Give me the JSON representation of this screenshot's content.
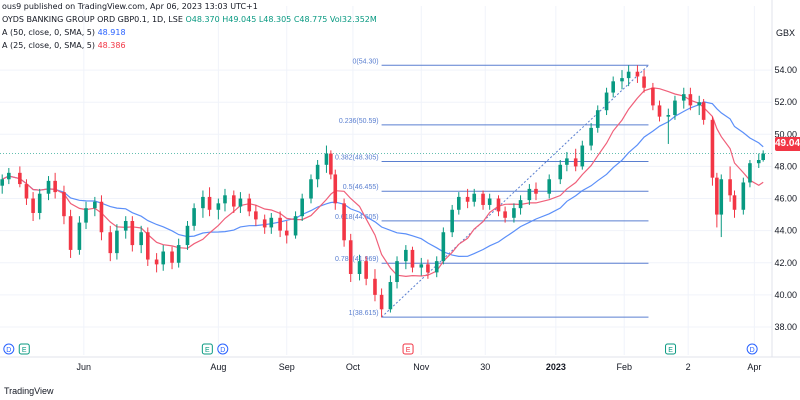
{
  "header": {
    "published": "ous9 published on TradingView.com, Apr 06, 2023 13:03 UTC+1",
    "symbol": "OYDS BANKING GROUP ORD GBP0.1, 1D, LSE",
    "ohlc": "O48.370 H49.045 L48.305 C48.775 Vol32.352M",
    "ma50_label": "A (50, close, 0, SMA, 5)",
    "ma50_value": "48.918",
    "ma25_label": "A (25, close, 0, SMA, 5)",
    "ma25_value": "48.386"
  },
  "footer": {
    "brand": "TradingView"
  },
  "colors": {
    "up": "#089981",
    "down": "#f23645",
    "ma50": "#5b8ff9",
    "ma25": "#f0607a",
    "fib": "#5a7fd0",
    "grid": "#f0f3fa",
    "axis_text": "#131722"
  },
  "chart_data": {
    "type": "line",
    "title": "",
    "ylabel": "GBX",
    "ylim": [
      37.5,
      55.5
    ],
    "y_ticks": [
      38,
      40,
      42,
      44,
      46,
      48,
      50,
      52,
      54
    ],
    "y_tick_labels": [
      "38.00",
      "40.00",
      "42.00",
      "44.00",
      "46.00",
      "48.00",
      "50.00",
      "52.00",
      "54.00"
    ],
    "x_ticks": [
      {
        "date": "2022-06-01",
        "label": "Jun"
      },
      {
        "date": "2022-08-01",
        "label": "Aug"
      },
      {
        "date": "2022-09-01",
        "label": "Sep"
      },
      {
        "date": "2022-10-01",
        "label": "Oct"
      },
      {
        "date": "2022-11-01",
        "label": "Nov"
      },
      {
        "date": "2022-11-30",
        "label": "30"
      },
      {
        "date": "2023-01-01",
        "label": "2023"
      },
      {
        "date": "2023-02-01",
        "label": "Feb"
      },
      {
        "date": "2023-03-02",
        "label": "2"
      },
      {
        "date": "2023-04-01",
        "label": "Apr"
      }
    ],
    "last_price": "49.04",
    "fibonacci": [
      {
        "label": "0(54.30)",
        "level": 54.3
      },
      {
        "label": "0.236(50.59)",
        "level": 50.59
      },
      {
        "label": "0.382(48.305)",
        "level": 48.305
      },
      {
        "label": "0.5(46.455)",
        "level": 46.455
      },
      {
        "label": "0.618(44.605)",
        "level": 44.605
      },
      {
        "label": "0.786(41.969)",
        "level": 41.969
      },
      {
        "label": "1(38.615)",
        "level": 38.615
      }
    ],
    "fib_range": {
      "start": "2022-10-14",
      "end": "2023-02-12"
    },
    "trend_line": {
      "from": {
        "date": "2022-10-14",
        "value": 38.615
      },
      "to": {
        "date": "2023-02-12",
        "value": 54.3
      }
    },
    "events": [
      {
        "date": "2022-04-28",
        "label": "D"
      },
      {
        "date": "2022-05-05",
        "label": "E"
      },
      {
        "date": "2022-07-27",
        "label": "E"
      },
      {
        "date": "2022-08-03",
        "label": "D"
      },
      {
        "date": "2022-10-26",
        "label": "E"
      },
      {
        "date": "2023-02-22",
        "label": "E"
      },
      {
        "date": "2023-03-31",
        "label": "D"
      }
    ],
    "candles": [
      {
        "date": "2022-04-25",
        "o": 46.8,
        "h": 47.5,
        "l": 46.3,
        "c": 47.2
      },
      {
        "date": "2022-04-28",
        "o": 47.2,
        "h": 47.9,
        "l": 46.9,
        "c": 47.6
      },
      {
        "date": "2022-05-03",
        "o": 47.6,
        "h": 48.0,
        "l": 46.7,
        "c": 46.9
      },
      {
        "date": "2022-05-06",
        "o": 46.9,
        "h": 47.2,
        "l": 45.6,
        "c": 46.0
      },
      {
        "date": "2022-05-09",
        "o": 46.0,
        "h": 46.4,
        "l": 44.6,
        "c": 45.1
      },
      {
        "date": "2022-05-12",
        "o": 45.1,
        "h": 46.6,
        "l": 44.7,
        "c": 46.3
      },
      {
        "date": "2022-05-16",
        "o": 46.3,
        "h": 47.4,
        "l": 45.9,
        "c": 47.1
      },
      {
        "date": "2022-05-19",
        "o": 47.1,
        "h": 47.6,
        "l": 46.0,
        "c": 46.4
      },
      {
        "date": "2022-05-23",
        "o": 46.4,
        "h": 46.8,
        "l": 44.4,
        "c": 44.9
      },
      {
        "date": "2022-05-26",
        "o": 44.9,
        "h": 45.3,
        "l": 42.3,
        "c": 42.8
      },
      {
        "date": "2022-05-30",
        "o": 42.8,
        "h": 44.9,
        "l": 42.5,
        "c": 44.5
      },
      {
        "date": "2022-06-02",
        "o": 44.5,
        "h": 45.8,
        "l": 44.1,
        "c": 45.4
      },
      {
        "date": "2022-06-06",
        "o": 45.4,
        "h": 46.1,
        "l": 44.9,
        "c": 45.8
      },
      {
        "date": "2022-06-09",
        "o": 45.8,
        "h": 46.2,
        "l": 43.4,
        "c": 43.9
      },
      {
        "date": "2022-06-13",
        "o": 43.9,
        "h": 44.3,
        "l": 42.1,
        "c": 42.6
      },
      {
        "date": "2022-06-16",
        "o": 42.6,
        "h": 44.4,
        "l": 42.2,
        "c": 44.0
      },
      {
        "date": "2022-06-20",
        "o": 44.0,
        "h": 44.9,
        "l": 43.5,
        "c": 44.6
      },
      {
        "date": "2022-06-23",
        "o": 44.6,
        "h": 44.9,
        "l": 42.7,
        "c": 43.1
      },
      {
        "date": "2022-06-27",
        "o": 43.1,
        "h": 44.3,
        "l": 42.6,
        "c": 43.9
      },
      {
        "date": "2022-06-30",
        "o": 43.9,
        "h": 44.2,
        "l": 41.8,
        "c": 42.2
      },
      {
        "date": "2022-07-04",
        "o": 42.2,
        "h": 42.6,
        "l": 41.4,
        "c": 41.9
      },
      {
        "date": "2022-07-07",
        "o": 41.9,
        "h": 43.1,
        "l": 41.5,
        "c": 42.7
      },
      {
        "date": "2022-07-11",
        "o": 42.7,
        "h": 43.0,
        "l": 41.6,
        "c": 42.0
      },
      {
        "date": "2022-07-14",
        "o": 42.0,
        "h": 43.5,
        "l": 41.7,
        "c": 43.1
      },
      {
        "date": "2022-07-18",
        "o": 43.1,
        "h": 44.6,
        "l": 42.8,
        "c": 44.3
      },
      {
        "date": "2022-07-21",
        "o": 44.3,
        "h": 45.7,
        "l": 44.0,
        "c": 45.4
      },
      {
        "date": "2022-07-25",
        "o": 45.4,
        "h": 46.5,
        "l": 44.8,
        "c": 46.1
      },
      {
        "date": "2022-07-28",
        "o": 46.1,
        "h": 46.7,
        "l": 44.9,
        "c": 45.3
      },
      {
        "date": "2022-08-01",
        "o": 45.3,
        "h": 46.0,
        "l": 44.7,
        "c": 45.7
      },
      {
        "date": "2022-08-04",
        "o": 45.7,
        "h": 46.6,
        "l": 45.2,
        "c": 46.2
      },
      {
        "date": "2022-08-08",
        "o": 46.2,
        "h": 46.5,
        "l": 45.1,
        "c": 45.5
      },
      {
        "date": "2022-08-11",
        "o": 45.5,
        "h": 46.4,
        "l": 45.1,
        "c": 46.0
      },
      {
        "date": "2022-08-15",
        "o": 46.0,
        "h": 46.3,
        "l": 44.9,
        "c": 45.2
      },
      {
        "date": "2022-08-18",
        "o": 45.2,
        "h": 45.6,
        "l": 44.3,
        "c": 44.7
      },
      {
        "date": "2022-08-22",
        "o": 44.7,
        "h": 45.0,
        "l": 43.8,
        "c": 44.2
      },
      {
        "date": "2022-08-25",
        "o": 44.2,
        "h": 45.1,
        "l": 43.8,
        "c": 44.8
      },
      {
        "date": "2022-08-29",
        "o": 44.8,
        "h": 45.2,
        "l": 43.6,
        "c": 44.0
      },
      {
        "date": "2022-09-01",
        "o": 44.0,
        "h": 44.6,
        "l": 43.2,
        "c": 43.7
      },
      {
        "date": "2022-09-05",
        "o": 43.7,
        "h": 45.2,
        "l": 43.5,
        "c": 44.9
      },
      {
        "date": "2022-09-08",
        "o": 44.9,
        "h": 46.3,
        "l": 44.6,
        "c": 46.0
      },
      {
        "date": "2022-09-12",
        "o": 46.0,
        "h": 47.5,
        "l": 45.7,
        "c": 47.2
      },
      {
        "date": "2022-09-15",
        "o": 47.2,
        "h": 48.4,
        "l": 46.7,
        "c": 48.1
      },
      {
        "date": "2022-09-19",
        "o": 48.1,
        "h": 49.3,
        "l": 47.6,
        "c": 48.8
      },
      {
        "date": "2022-09-21",
        "o": 48.8,
        "h": 49.0,
        "l": 47.2,
        "c": 47.5
      },
      {
        "date": "2022-09-23",
        "o": 47.5,
        "h": 47.8,
        "l": 45.3,
        "c": 45.7
      },
      {
        "date": "2022-09-27",
        "o": 45.7,
        "h": 46.0,
        "l": 43.0,
        "c": 43.4
      },
      {
        "date": "2022-09-30",
        "o": 43.4,
        "h": 43.8,
        "l": 40.8,
        "c": 41.3
      },
      {
        "date": "2022-10-04",
        "o": 41.3,
        "h": 42.5,
        "l": 40.9,
        "c": 42.1
      },
      {
        "date": "2022-10-07",
        "o": 42.1,
        "h": 42.4,
        "l": 40.6,
        "c": 41.0
      },
      {
        "date": "2022-10-11",
        "o": 41.0,
        "h": 41.6,
        "l": 39.6,
        "c": 40.0
      },
      {
        "date": "2022-10-14",
        "o": 40.0,
        "h": 40.4,
        "l": 38.6,
        "c": 39.1
      },
      {
        "date": "2022-10-18",
        "o": 39.1,
        "h": 41.2,
        "l": 38.9,
        "c": 40.8
      },
      {
        "date": "2022-10-21",
        "o": 40.8,
        "h": 42.4,
        "l": 40.4,
        "c": 42.1
      },
      {
        "date": "2022-10-25",
        "o": 42.1,
        "h": 43.1,
        "l": 41.6,
        "c": 42.8
      },
      {
        "date": "2022-10-28",
        "o": 42.8,
        "h": 43.0,
        "l": 41.4,
        "c": 41.7
      },
      {
        "date": "2022-11-01",
        "o": 41.7,
        "h": 42.3,
        "l": 41.2,
        "c": 41.9
      },
      {
        "date": "2022-11-04",
        "o": 41.9,
        "h": 42.2,
        "l": 41.0,
        "c": 41.4
      },
      {
        "date": "2022-11-08",
        "o": 41.4,
        "h": 42.4,
        "l": 41.1,
        "c": 42.1
      },
      {
        "date": "2022-11-11",
        "o": 42.1,
        "h": 44.2,
        "l": 41.9,
        "c": 43.9
      },
      {
        "date": "2022-11-15",
        "o": 43.9,
        "h": 45.6,
        "l": 43.6,
        "c": 45.3
      },
      {
        "date": "2022-11-18",
        "o": 45.3,
        "h": 46.4,
        "l": 45.0,
        "c": 46.1
      },
      {
        "date": "2022-11-22",
        "o": 46.1,
        "h": 46.6,
        "l": 45.4,
        "c": 45.8
      },
      {
        "date": "2022-11-25",
        "o": 45.8,
        "h": 46.6,
        "l": 45.5,
        "c": 46.3
      },
      {
        "date": "2022-11-29",
        "o": 46.3,
        "h": 46.5,
        "l": 45.3,
        "c": 45.6
      },
      {
        "date": "2022-12-02",
        "o": 45.6,
        "h": 46.3,
        "l": 45.3,
        "c": 46.0
      },
      {
        "date": "2022-12-06",
        "o": 46.0,
        "h": 46.2,
        "l": 44.9,
        "c": 45.2
      },
      {
        "date": "2022-12-09",
        "o": 45.2,
        "h": 45.5,
        "l": 44.5,
        "c": 44.8
      },
      {
        "date": "2022-12-13",
        "o": 44.8,
        "h": 45.7,
        "l": 44.5,
        "c": 45.4
      },
      {
        "date": "2022-12-16",
        "o": 45.4,
        "h": 46.2,
        "l": 45.0,
        "c": 45.9
      },
      {
        "date": "2022-12-20",
        "o": 45.9,
        "h": 46.9,
        "l": 45.6,
        "c": 46.6
      },
      {
        "date": "2022-12-23",
        "o": 46.6,
        "h": 47.0,
        "l": 45.9,
        "c": 46.3
      },
      {
        "date": "2022-12-29",
        "o": 46.3,
        "h": 47.5,
        "l": 46.0,
        "c": 47.2
      },
      {
        "date": "2023-01-03",
        "o": 47.2,
        "h": 48.4,
        "l": 46.9,
        "c": 48.1
      },
      {
        "date": "2023-01-06",
        "o": 48.1,
        "h": 48.9,
        "l": 47.7,
        "c": 48.5
      },
      {
        "date": "2023-01-10",
        "o": 48.5,
        "h": 49.1,
        "l": 47.7,
        "c": 48.0
      },
      {
        "date": "2023-01-13",
        "o": 48.0,
        "h": 49.6,
        "l": 47.8,
        "c": 49.3
      },
      {
        "date": "2023-01-17",
        "o": 49.3,
        "h": 50.7,
        "l": 49.0,
        "c": 50.4
      },
      {
        "date": "2023-01-20",
        "o": 50.4,
        "h": 51.8,
        "l": 50.1,
        "c": 51.5
      },
      {
        "date": "2023-01-24",
        "o": 51.5,
        "h": 52.9,
        "l": 51.2,
        "c": 52.6
      },
      {
        "date": "2023-01-27",
        "o": 52.6,
        "h": 53.6,
        "l": 52.3,
        "c": 53.3
      },
      {
        "date": "2023-01-31",
        "o": 53.3,
        "h": 54.0,
        "l": 52.8,
        "c": 53.5
      },
      {
        "date": "2023-02-03",
        "o": 53.5,
        "h": 54.3,
        "l": 53.0,
        "c": 53.9
      },
      {
        "date": "2023-02-07",
        "o": 53.9,
        "h": 54.3,
        "l": 53.2,
        "c": 53.6
      },
      {
        "date": "2023-02-10",
        "o": 53.6,
        "h": 54.0,
        "l": 52.6,
        "c": 52.9
      },
      {
        "date": "2023-02-14",
        "o": 52.9,
        "h": 53.2,
        "l": 51.5,
        "c": 51.8
      },
      {
        "date": "2023-02-17",
        "o": 51.8,
        "h": 52.1,
        "l": 50.8,
        "c": 51.1
      },
      {
        "date": "2023-02-21",
        "o": 51.1,
        "h": 51.6,
        "l": 49.4,
        "c": 51.2
      },
      {
        "date": "2023-02-24",
        "o": 51.2,
        "h": 52.4,
        "l": 50.9,
        "c": 52.1
      },
      {
        "date": "2023-02-28",
        "o": 52.1,
        "h": 52.9,
        "l": 51.6,
        "c": 52.5
      },
      {
        "date": "2023-03-03",
        "o": 52.5,
        "h": 52.9,
        "l": 51.5,
        "c": 51.8
      },
      {
        "date": "2023-03-07",
        "o": 51.8,
        "h": 52.4,
        "l": 51.2,
        "c": 52.0
      },
      {
        "date": "2023-03-09",
        "o": 52.0,
        "h": 52.2,
        "l": 50.6,
        "c": 50.9
      },
      {
        "date": "2023-03-13",
        "o": 50.9,
        "h": 51.1,
        "l": 46.8,
        "c": 47.3
      },
      {
        "date": "2023-03-15",
        "o": 47.3,
        "h": 47.6,
        "l": 44.2,
        "c": 45.0
      },
      {
        "date": "2023-03-17",
        "o": 45.0,
        "h": 47.5,
        "l": 43.6,
        "c": 47.2
      },
      {
        "date": "2023-03-21",
        "o": 47.2,
        "h": 48.0,
        "l": 45.8,
        "c": 46.2
      },
      {
        "date": "2023-03-23",
        "o": 46.2,
        "h": 46.5,
        "l": 44.8,
        "c": 45.3
      },
      {
        "date": "2023-03-27",
        "o": 45.3,
        "h": 47.3,
        "l": 45.0,
        "c": 47.0
      },
      {
        "date": "2023-03-30",
        "o": 47.0,
        "h": 48.4,
        "l": 46.7,
        "c": 48.2
      },
      {
        "date": "2023-04-03",
        "o": 48.2,
        "h": 48.8,
        "l": 47.9,
        "c": 48.4
      },
      {
        "date": "2023-04-05",
        "o": 48.4,
        "h": 49.0,
        "l": 48.3,
        "c": 48.8
      }
    ]
  }
}
